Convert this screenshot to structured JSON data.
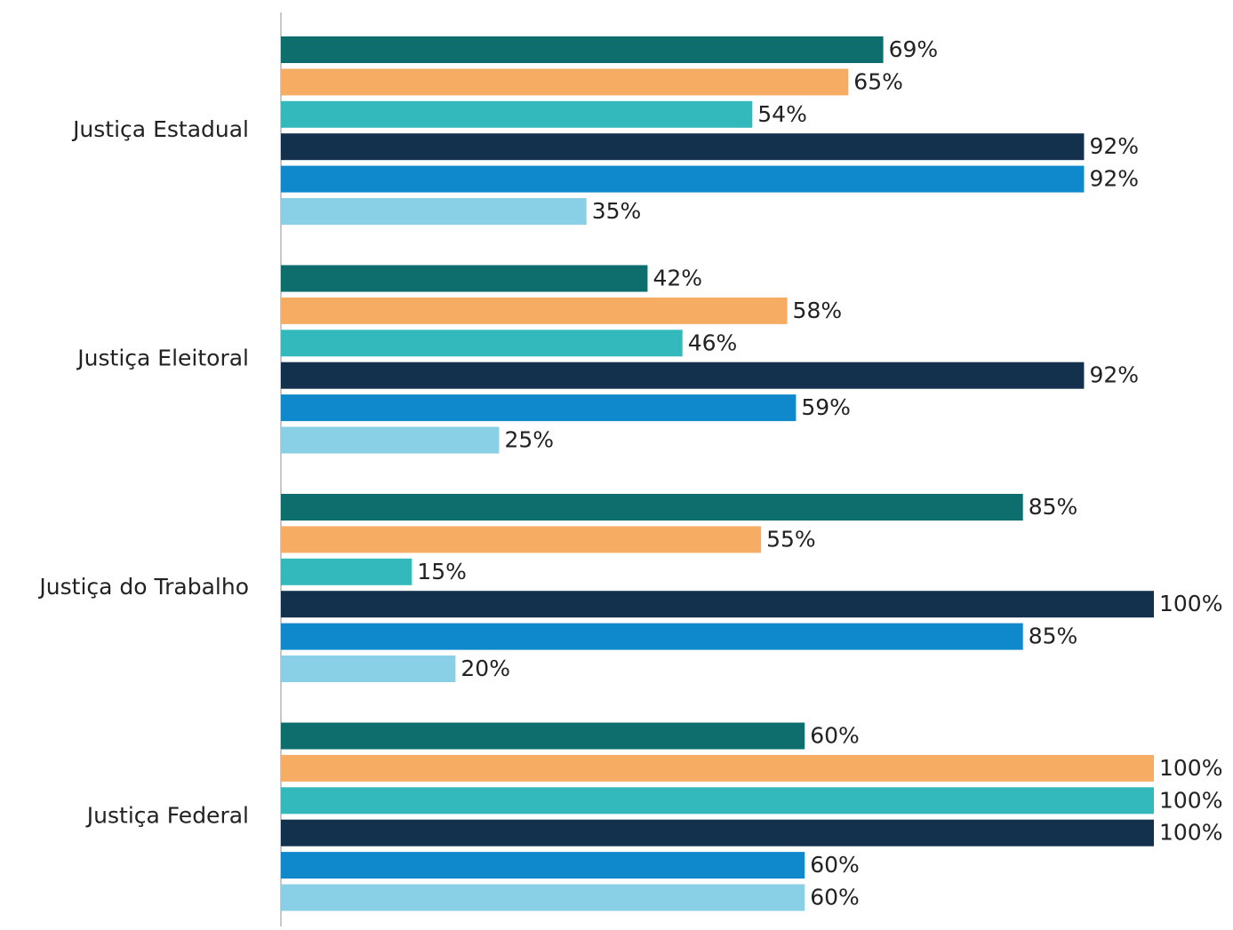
{
  "chart_data": {
    "type": "bar",
    "orientation": "horizontal",
    "categories": [
      "Justiça Estadual",
      "Justiça Eleitoral",
      "Justiça do Trabalho",
      "Justiça Federal"
    ],
    "xlim": [
      0,
      100
    ],
    "series": [
      {
        "color": "#0e6e6e",
        "values": [
          69,
          42,
          85,
          60
        ],
        "value_labels": [
          "69%",
          "42%",
          "85%",
          "60%"
        ]
      },
      {
        "color": "#f7ac63",
        "values": [
          65,
          58,
          55,
          100
        ],
        "value_labels": [
          "65%",
          "58%",
          "55%",
          "100%"
        ]
      },
      {
        "color": "#33b8bb",
        "values": [
          54,
          46,
          15,
          100
        ],
        "value_labels": [
          "54%",
          "46%",
          "15%",
          "100%"
        ]
      },
      {
        "color": "#13314d",
        "values": [
          92,
          92,
          100,
          100
        ],
        "value_labels": [
          "92%",
          "92%",
          "100%",
          "100%"
        ]
      },
      {
        "color": "#0f88cc",
        "values": [
          92,
          59,
          85,
          60
        ],
        "value_labels": [
          "92%",
          "59%",
          "85%",
          "60%"
        ]
      },
      {
        "color": "#89cfe6",
        "values": [
          35,
          25,
          20,
          60
        ],
        "value_labels": [
          "35%",
          "25%",
          "20%",
          "60%"
        ]
      }
    ]
  }
}
